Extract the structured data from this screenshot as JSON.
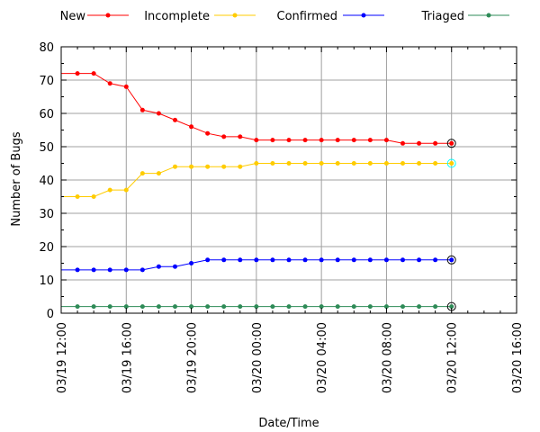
{
  "chart_data": {
    "type": "line",
    "xlabel": "Date/Time",
    "ylabel": "Number of Bugs",
    "ylim": [
      0,
      80
    ],
    "yticks": [
      0,
      10,
      20,
      30,
      40,
      50,
      60,
      70,
      80
    ],
    "xlim": [
      "03/19 12:00",
      "03/20 16:00"
    ],
    "xticks": [
      "03/19 12:00",
      "03/19 16:00",
      "03/19 20:00",
      "03/20 00:00",
      "03/20 04:00",
      "03/20 08:00",
      "03/20 12:00",
      "03/20 16:00"
    ],
    "grid": true,
    "legend": "top",
    "x": [
      "03/19 12:00",
      "03/19 13:00",
      "03/19 14:00",
      "03/19 15:00",
      "03/19 16:00",
      "03/19 17:00",
      "03/19 18:00",
      "03/19 19:00",
      "03/19 20:00",
      "03/19 21:00",
      "03/19 22:00",
      "03/19 23:00",
      "03/20 00:00",
      "03/20 01:00",
      "03/20 02:00",
      "03/20 03:00",
      "03/20 04:00",
      "03/20 05:00",
      "03/20 06:00",
      "03/20 07:00",
      "03/20 08:00",
      "03/20 09:00",
      "03/20 10:00",
      "03/20 11:00",
      "03/20 12:00"
    ],
    "series": [
      {
        "name": "New",
        "color": "#ff0000",
        "values": [
          72,
          72,
          72,
          69,
          68,
          61,
          60,
          58,
          56,
          54,
          53,
          53,
          52,
          52,
          52,
          52,
          52,
          52,
          52,
          52,
          52,
          51,
          51,
          51,
          51
        ]
      },
      {
        "name": "Incomplete",
        "color": "#ffcc00",
        "values": [
          35,
          35,
          35,
          37,
          37,
          42,
          42,
          44,
          44,
          44,
          44,
          44,
          45,
          45,
          45,
          45,
          45,
          45,
          45,
          45,
          45,
          45,
          45,
          45,
          45
        ]
      },
      {
        "name": "Confirmed",
        "color": "#0000ff",
        "values": [
          13,
          13,
          13,
          13,
          13,
          13,
          14,
          14,
          15,
          16,
          16,
          16,
          16,
          16,
          16,
          16,
          16,
          16,
          16,
          16,
          16,
          16,
          16,
          16,
          16
        ]
      },
      {
        "name": "Triaged",
        "color": "#2e8b57",
        "values": [
          2,
          2,
          2,
          2,
          2,
          2,
          2,
          2,
          2,
          2,
          2,
          2,
          2,
          2,
          2,
          2,
          2,
          2,
          2,
          2,
          2,
          2,
          2,
          2,
          2
        ]
      }
    ]
  }
}
